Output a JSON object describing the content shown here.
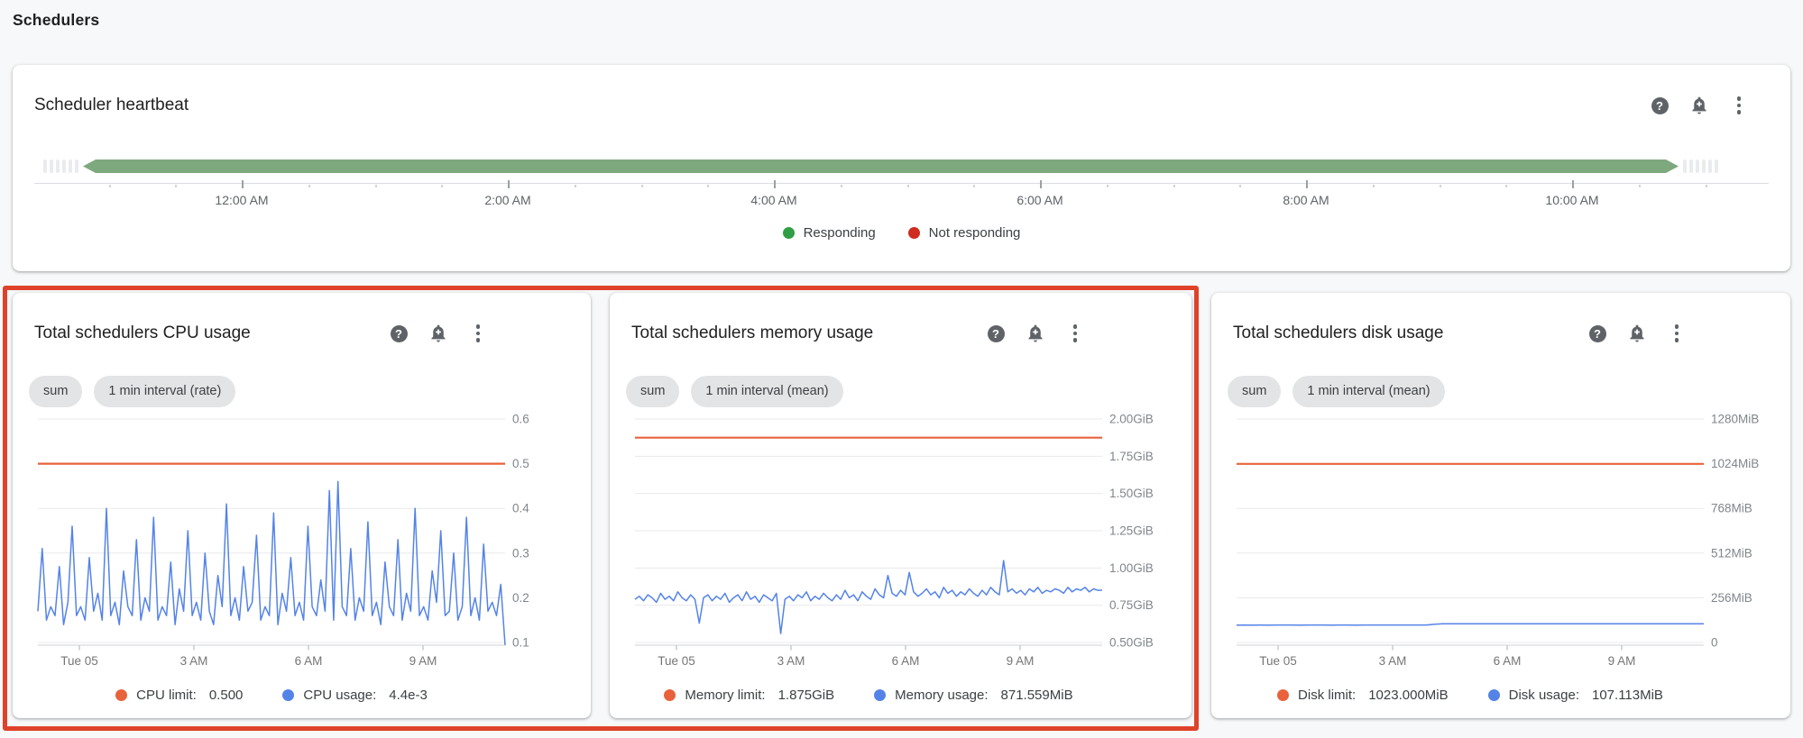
{
  "page": {
    "heading": "Schedulers"
  },
  "glyphs": {
    "help": "?"
  },
  "colors": {
    "limit_orange": "#e8623c",
    "usage_blue": "#5483e8",
    "responding_green_bar": "#7ea87d",
    "responding_green_dot": "#2f9e44",
    "not_responding_red": "#cf2b20",
    "highlight_red": "#df422a"
  },
  "chart_data": [
    {
      "id": "scheduler-heartbeat",
      "type": "status-timeline",
      "title": "Scheduler heartbeat",
      "status": "Responding",
      "status_color": "#7ea87d",
      "span_note": "single uninterrupted green (Responding) band across the visible window",
      "xticks": [
        "12:00 AM",
        "2:00 AM",
        "4:00 AM",
        "6:00 AM",
        "8:00 AM",
        "10:00 AM"
      ],
      "legend": [
        {
          "label": "Responding",
          "color": "#2f9e44"
        },
        {
          "label": "Not responding",
          "color": "#cf2b20"
        }
      ]
    },
    {
      "id": "cpu",
      "type": "line",
      "title": "Total schedulers CPU usage",
      "chips": [
        "sum",
        "1 min interval (rate)"
      ],
      "ymin": 0.1,
      "ymax": 0.6,
      "yticks": [
        {
          "v": 0.1,
          "label": "0.1"
        },
        {
          "v": 0.2,
          "label": "0.2"
        },
        {
          "v": 0.3,
          "label": "0.3"
        },
        {
          "v": 0.4,
          "label": "0.4"
        },
        {
          "v": 0.5,
          "label": "0.5"
        },
        {
          "v": 0.6,
          "label": "0.6"
        }
      ],
      "xticks": [
        "Tue 05",
        "3 AM",
        "6 AM",
        "9 AM"
      ],
      "limit": {
        "label": "CPU limit:",
        "value": "0.500",
        "v": 0.5,
        "color": "#e8623c"
      },
      "usage": {
        "label": "CPU usage:",
        "value": "4.4e-3",
        "color": "#5483e8",
        "values": [
          0.17,
          0.31,
          0.15,
          0.18,
          0.16,
          0.27,
          0.14,
          0.19,
          0.36,
          0.16,
          0.18,
          0.15,
          0.29,
          0.17,
          0.21,
          0.15,
          0.4,
          0.16,
          0.19,
          0.14,
          0.26,
          0.18,
          0.16,
          0.33,
          0.15,
          0.2,
          0.17,
          0.38,
          0.15,
          0.18,
          0.16,
          0.28,
          0.14,
          0.22,
          0.17,
          0.35,
          0.16,
          0.19,
          0.15,
          0.3,
          0.17,
          0.14,
          0.25,
          0.18,
          0.41,
          0.16,
          0.2,
          0.15,
          0.27,
          0.17,
          0.19,
          0.34,
          0.15,
          0.18,
          0.16,
          0.39,
          0.14,
          0.21,
          0.17,
          0.29,
          0.16,
          0.19,
          0.15,
          0.36,
          0.18,
          0.16,
          0.24,
          0.17,
          0.44,
          0.15,
          0.46,
          0.18,
          0.16,
          0.31,
          0.15,
          0.2,
          0.17,
          0.37,
          0.16,
          0.19,
          0.14,
          0.28,
          0.18,
          0.16,
          0.33,
          0.15,
          0.21,
          0.17,
          0.4,
          0.16,
          0.18,
          0.15,
          0.26,
          0.19,
          0.35,
          0.16,
          0.17,
          0.3,
          0.15,
          0.18,
          0.38,
          0.16,
          0.2,
          0.15,
          0.32,
          0.17,
          0.19,
          0.16,
          0.23,
          0.004
        ]
      }
    },
    {
      "id": "memory",
      "type": "line",
      "title": "Total schedulers memory usage",
      "chips": [
        "sum",
        "1 min interval (mean)"
      ],
      "ymin": 0.5,
      "ymax": 2.0,
      "yticks": [
        {
          "v": 0.5,
          "label": "0.50GiB"
        },
        {
          "v": 0.75,
          "label": "0.75GiB"
        },
        {
          "v": 1.0,
          "label": "1.00GiB"
        },
        {
          "v": 1.25,
          "label": "1.25GiB"
        },
        {
          "v": 1.5,
          "label": "1.50GiB"
        },
        {
          "v": 1.75,
          "label": "1.75GiB"
        },
        {
          "v": 2.0,
          "label": "2.00GiB"
        }
      ],
      "xticks": [
        "Tue 05",
        "3 AM",
        "6 AM",
        "9 AM"
      ],
      "limit": {
        "label": "Memory limit:",
        "value": "1.875GiB",
        "v": 1.875,
        "color": "#e8623c"
      },
      "usage": {
        "label": "Memory usage:",
        "value": "871.559MiB",
        "color": "#5483e8",
        "values": [
          0.79,
          0.81,
          0.78,
          0.82,
          0.8,
          0.77,
          0.83,
          0.79,
          0.81,
          0.78,
          0.84,
          0.8,
          0.78,
          0.82,
          0.79,
          0.63,
          0.8,
          0.82,
          0.78,
          0.81,
          0.79,
          0.83,
          0.77,
          0.8,
          0.82,
          0.78,
          0.84,
          0.79,
          0.81,
          0.77,
          0.82,
          0.8,
          0.78,
          0.83,
          0.56,
          0.79,
          0.81,
          0.78,
          0.82,
          0.8,
          0.84,
          0.78,
          0.81,
          0.79,
          0.83,
          0.8,
          0.78,
          0.82,
          0.79,
          0.85,
          0.8,
          0.82,
          0.78,
          0.84,
          0.81,
          0.79,
          0.86,
          0.82,
          0.8,
          0.95,
          0.83,
          0.81,
          0.85,
          0.82,
          0.97,
          0.84,
          0.81,
          0.83,
          0.86,
          0.82,
          0.84,
          0.8,
          0.87,
          0.83,
          0.85,
          0.81,
          0.84,
          0.82,
          0.86,
          0.83,
          0.81,
          0.85,
          0.82,
          0.87,
          0.84,
          0.82,
          1.05,
          0.84,
          0.86,
          0.83,
          0.85,
          0.82,
          0.86,
          0.84,
          0.87,
          0.83,
          0.85,
          0.84,
          0.86,
          0.85,
          0.83,
          0.87,
          0.84,
          0.86,
          0.85,
          0.87,
          0.84,
          0.86,
          0.85,
          0.851
        ]
      }
    },
    {
      "id": "disk",
      "type": "line",
      "title": "Total schedulers disk usage",
      "chips": [
        "sum",
        "1 min interval (mean)"
      ],
      "ymin": 0,
      "ymax": 1280,
      "yticks": [
        {
          "v": 0,
          "label": "0"
        },
        {
          "v": 256,
          "label": "256MiB"
        },
        {
          "v": 512,
          "label": "512MiB"
        },
        {
          "v": 768,
          "label": "768MiB"
        },
        {
          "v": 1024,
          "label": "1024MiB"
        },
        {
          "v": 1280,
          "label": "1280MiB"
        }
      ],
      "xticks": [
        "Tue 05",
        "3 AM",
        "6 AM",
        "9 AM"
      ],
      "limit": {
        "label": "Disk limit:",
        "value": "1023.000MiB",
        "v": 1023,
        "color": "#e8623c"
      },
      "usage": {
        "label": "Disk usage:",
        "value": "107.113MiB",
        "color": "#5483e8",
        "values": [
          99.8,
          100.1,
          99.6,
          100.0,
          99.7,
          100.2,
          99.9,
          100.0,
          99.8,
          100.3,
          99.9,
          100.1,
          99.7,
          100.2,
          100.0,
          99.8,
          100.1,
          99.9,
          100.2,
          100.0,
          99.9,
          100.3,
          100.1,
          100.0,
          100.2,
          104.8,
          106.9,
          107.0,
          107.2,
          107.0,
          107.3,
          107.1,
          106.9,
          107.2,
          107.0,
          107.4,
          107.1,
          107.3,
          107.0,
          107.2,
          107.4,
          107.1,
          107.3,
          107.2,
          107.0,
          107.4,
          107.2,
          107.3,
          107.1,
          107.4,
          107.2,
          107.3,
          107.1,
          107.2,
          107.4,
          107.2,
          107.3,
          107.1,
          107.2,
          107.113
        ]
      }
    }
  ]
}
